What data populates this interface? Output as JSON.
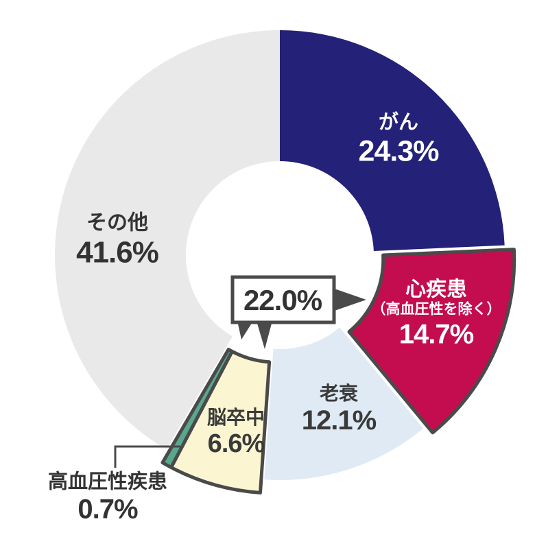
{
  "chart_data": {
    "type": "pie",
    "subtype": "donut",
    "unit": "%",
    "total": 100.0,
    "direction": "clockwise",
    "start_angle_deg": 0,
    "legend_position": "none",
    "background": "#ffffff",
    "outline_color": "#4a4a4a",
    "slices": [
      {
        "id": "cancer",
        "label": "がん",
        "value": 24.3,
        "pct_label": "24.3%",
        "color": "#232178",
        "label_color": "#ffffff",
        "exploded": false,
        "outlined": false
      },
      {
        "id": "heart",
        "label": "心疾患",
        "sublabel": "（高血圧性を除く）",
        "value": 14.7,
        "pct_label": "14.7%",
        "color": "#c30d4e",
        "label_color": "#ffffff",
        "exploded": true,
        "outlined": true
      },
      {
        "id": "senility",
        "label": "老衰",
        "value": 12.1,
        "pct_label": "12.1%",
        "color": "#dfeaf4",
        "label_color": "#3a3a3a",
        "exploded": false,
        "outlined": false
      },
      {
        "id": "stroke",
        "label": "脳卒中",
        "value": 6.6,
        "pct_label": "6.6%",
        "color": "#fcf5d2",
        "label_color": "#3a3a3a",
        "exploded": true,
        "outlined": true
      },
      {
        "id": "hypertensive",
        "label": "高血圧性疾患",
        "value": 0.7,
        "pct_label": "0.7%",
        "color": "#58a78e",
        "label_color": "#333333",
        "exploded": true,
        "outlined": true,
        "label_position": "outside"
      },
      {
        "id": "others",
        "label": "その他",
        "value": 41.6,
        "pct_label": "41.6%",
        "color": "#e9e9ea",
        "label_color": "#333333",
        "exploded": false,
        "outlined": false
      }
    ],
    "callout": {
      "pct_label": "22.0%",
      "covers": [
        "heart",
        "stroke",
        "hypertensive"
      ],
      "box_fill": "#ffffff",
      "box_border": "#4a4a4a",
      "text_color": "#333333"
    }
  }
}
